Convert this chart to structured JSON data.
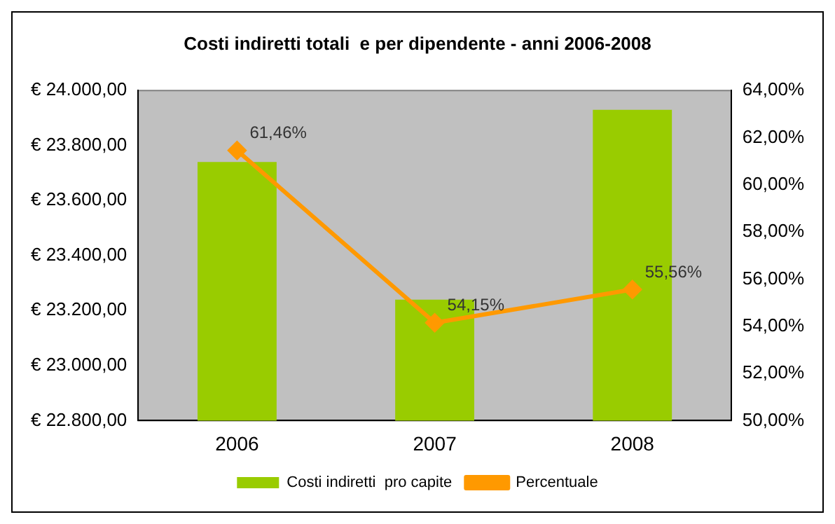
{
  "chart_data": {
    "type": "bar",
    "title": "Costi indiretti totali  e per dipendente - anni 2006-2008",
    "categories": [
      "2006",
      "2007",
      "2008"
    ],
    "series": [
      {
        "name": "Costi indiretti  pro capite",
        "color": "#99cc00",
        "values": [
          23740,
          23240,
          23930
        ]
      },
      {
        "name": "Percentuale",
        "type": "line",
        "axis": "y2",
        "color": "#ff9900",
        "values": [
          61.46,
          54.15,
          55.56
        ],
        "value_labels": [
          "61,46%",
          "54,15%",
          "55,56%"
        ],
        "marker": "diamond"
      }
    ],
    "ylim": [
      22800,
      24000
    ],
    "yticks": [
      {
        "value": 22800,
        "label": "€ 22.800,00"
      },
      {
        "value": 23000,
        "label": "€ 23.000,00"
      },
      {
        "value": 23200,
        "label": "€ 23.200,00"
      },
      {
        "value": 23400,
        "label": "€ 23.400,00"
      },
      {
        "value": 23600,
        "label": "€ 23.600,00"
      },
      {
        "value": 23800,
        "label": "€ 23.800,00"
      },
      {
        "value": 24000,
        "label": "€ 24.000,00"
      }
    ],
    "y2lim": [
      50,
      64
    ],
    "y2ticks": [
      {
        "value": 50,
        "label": "50,00%"
      },
      {
        "value": 52,
        "label": "52,00%"
      },
      {
        "value": 54,
        "label": "54,00%"
      },
      {
        "value": 56,
        "label": "56,00%"
      },
      {
        "value": 58,
        "label": "58,00%"
      },
      {
        "value": 60,
        "label": "60,00%"
      },
      {
        "value": 62,
        "label": "62,00%"
      },
      {
        "value": 64,
        "label": "64,00%"
      }
    ],
    "grid": false,
    "legend": "bottom"
  }
}
